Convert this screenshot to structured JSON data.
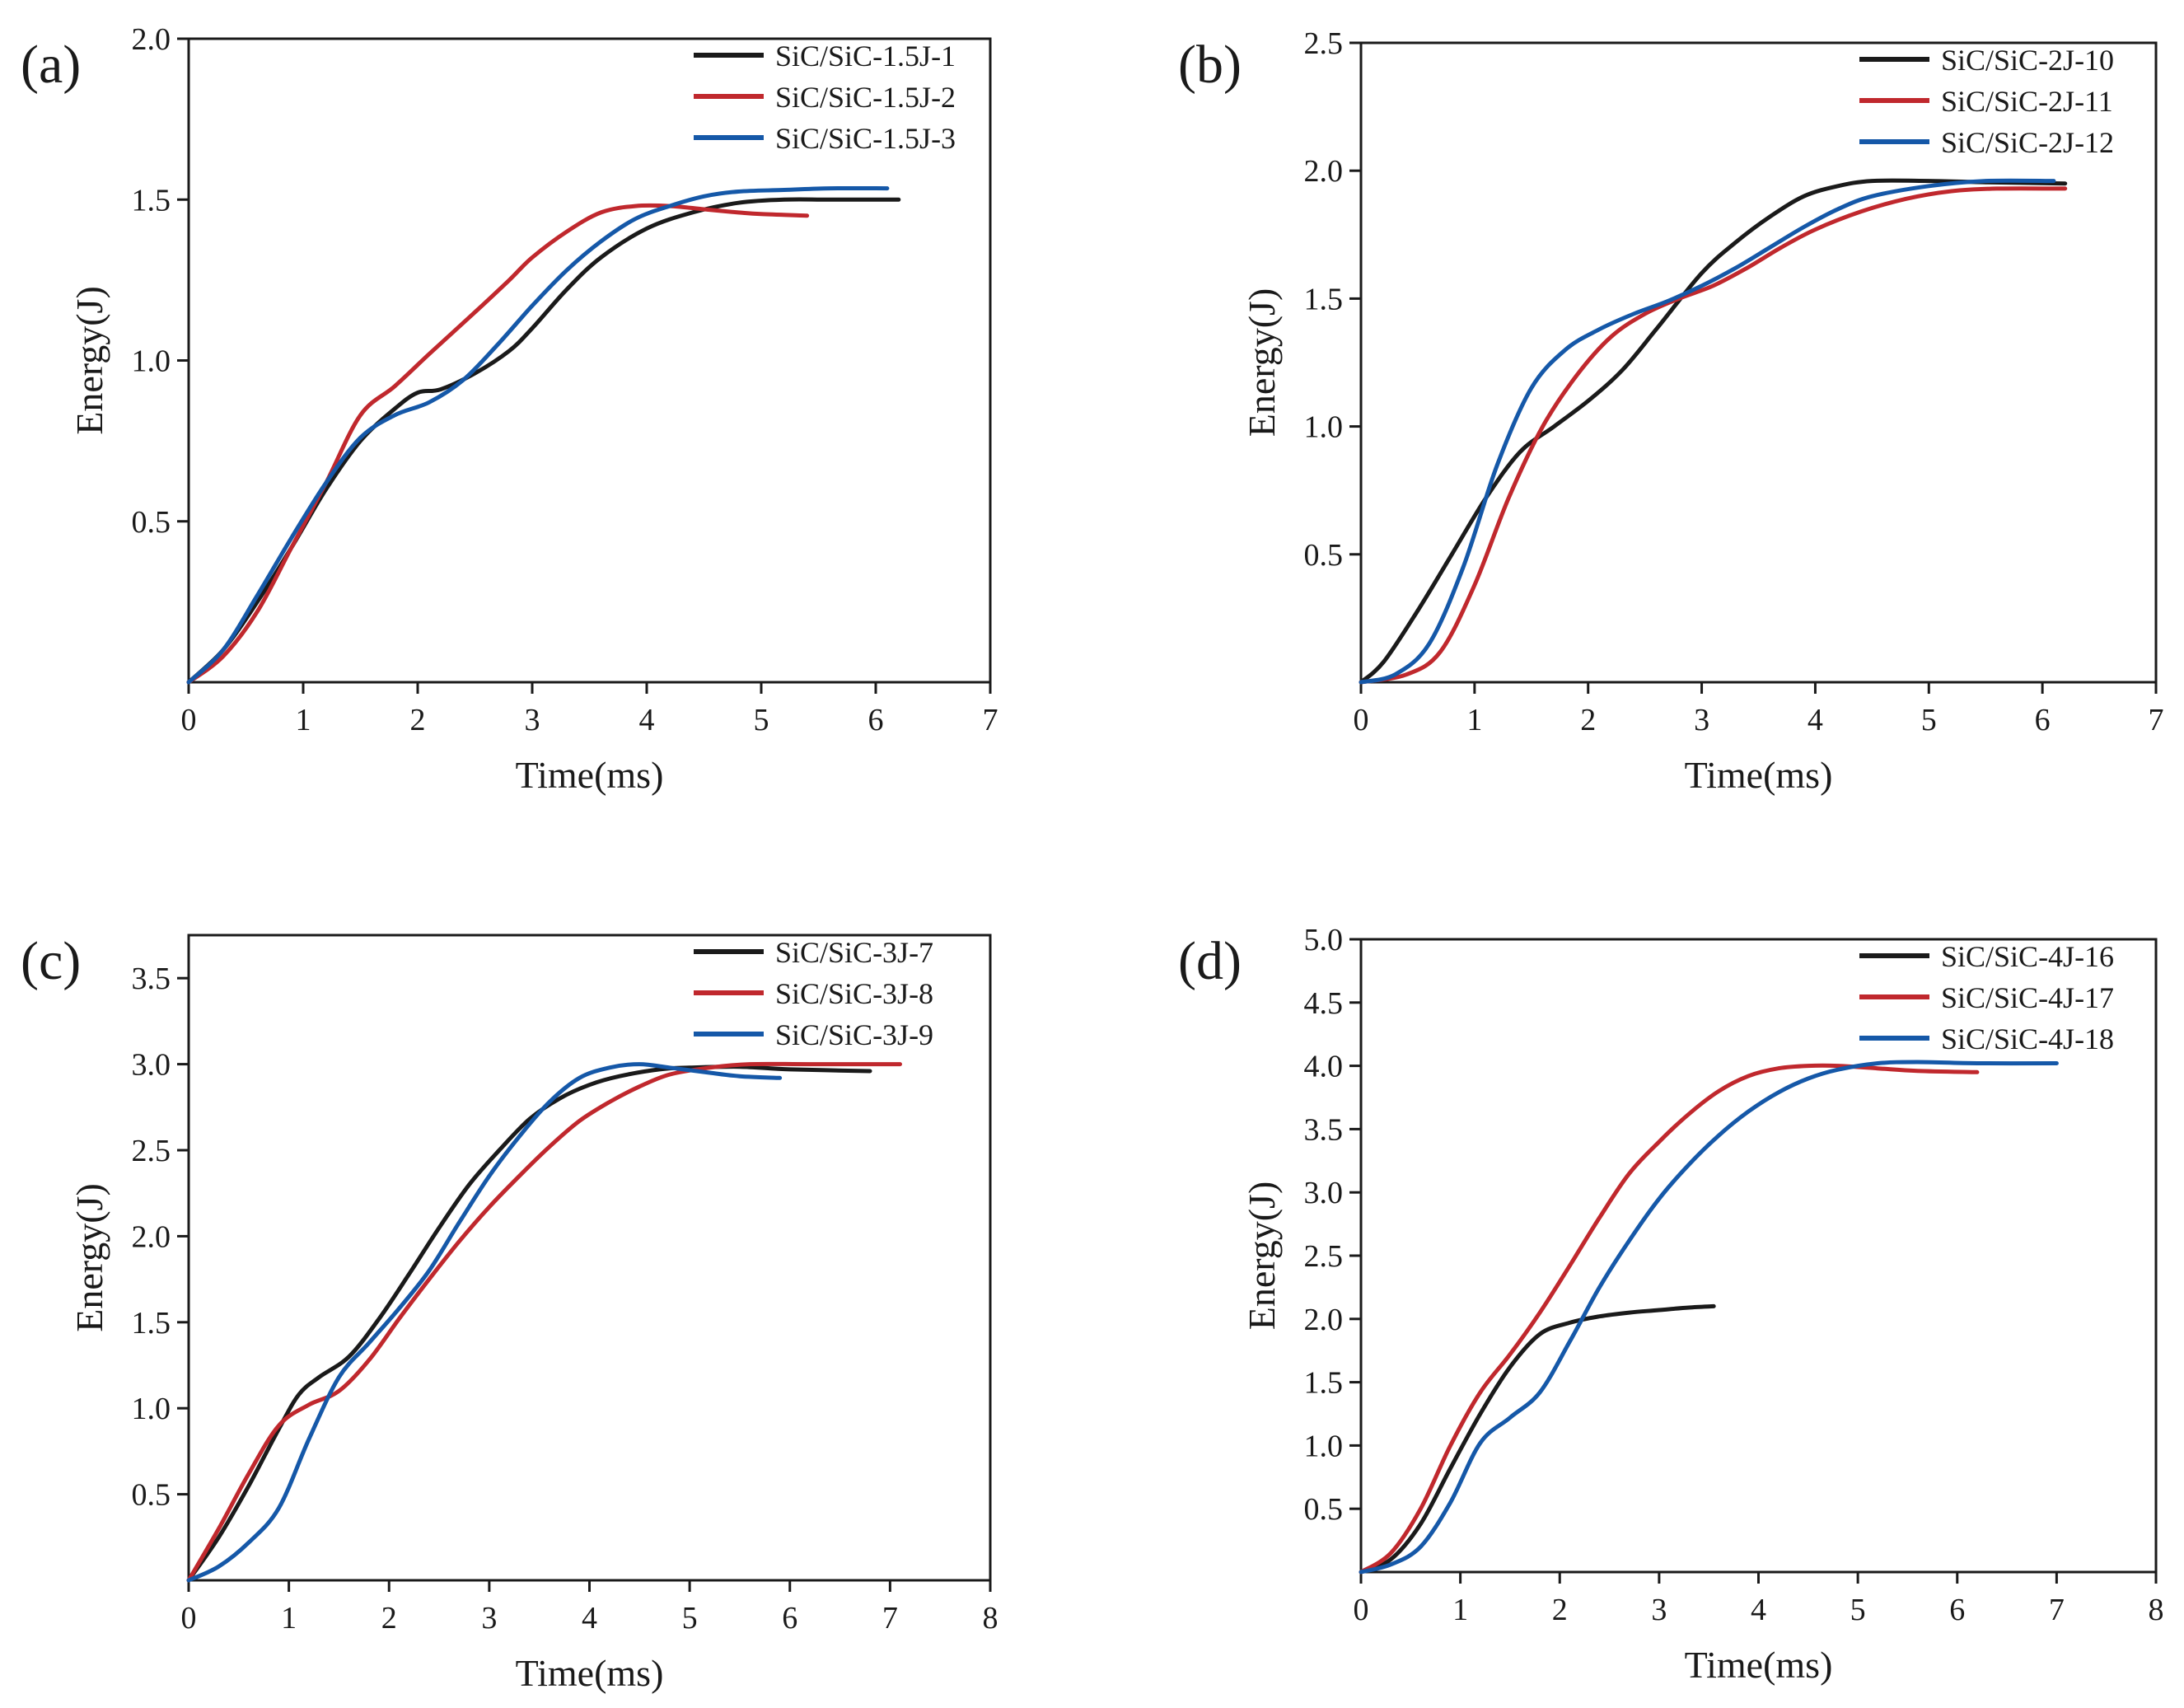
{
  "colors": {
    "black_series": "#1a1a1a",
    "red_series": "#c0282d",
    "blue_series": "#1558a8",
    "axis": "#1a1a1a"
  },
  "chart_data": [
    {
      "panel": "(a)",
      "type": "line",
      "xlabel": "Time(ms)",
      "ylabel": "Energy(J)",
      "xlim": [
        0,
        7
      ],
      "ylim": [
        0,
        2.0
      ],
      "xticks": [
        "0",
        "1",
        "2",
        "3",
        "4",
        "5",
        "6",
        "7"
      ],
      "yticks": [
        "0.5",
        "1.0",
        "1.5",
        "2.0"
      ],
      "legend_position": "top-right",
      "series": [
        {
          "name": "SiC/SiC-1.5J-1",
          "color": "black",
          "x": [
            0,
            0.3,
            0.6,
            0.9,
            1.2,
            1.5,
            1.8,
            2.0,
            2.2,
            2.5,
            2.8,
            3.0,
            3.3,
            3.6,
            4.0,
            4.4,
            4.8,
            5.2,
            5.6,
            6.2
          ],
          "y": [
            0,
            0.1,
            0.25,
            0.42,
            0.6,
            0.75,
            0.85,
            0.9,
            0.91,
            0.96,
            1.03,
            1.1,
            1.22,
            1.32,
            1.41,
            1.46,
            1.49,
            1.5,
            1.5,
            1.5
          ]
        },
        {
          "name": "SiC/SiC-1.5J-2",
          "color": "red",
          "x": [
            0,
            0.3,
            0.6,
            0.9,
            1.2,
            1.5,
            1.8,
            2.1,
            2.5,
            2.8,
            3.0,
            3.3,
            3.6,
            3.9,
            4.2,
            4.5,
            4.8,
            5.0,
            5.4
          ],
          "y": [
            0,
            0.08,
            0.22,
            0.42,
            0.62,
            0.83,
            0.92,
            1.02,
            1.15,
            1.25,
            1.32,
            1.4,
            1.46,
            1.48,
            1.48,
            1.47,
            1.46,
            1.455,
            1.45
          ]
        },
        {
          "name": "SiC/SiC-1.5J-3",
          "color": "blue",
          "x": [
            0,
            0.3,
            0.6,
            0.9,
            1.2,
            1.5,
            1.8,
            2.1,
            2.4,
            2.7,
            3.0,
            3.3,
            3.6,
            3.9,
            4.2,
            4.5,
            4.8,
            5.2,
            5.6,
            6.1
          ],
          "y": [
            0,
            0.1,
            0.27,
            0.45,
            0.62,
            0.76,
            0.83,
            0.87,
            0.94,
            1.05,
            1.17,
            1.28,
            1.37,
            1.44,
            1.48,
            1.51,
            1.525,
            1.53,
            1.535,
            1.535
          ]
        }
      ]
    },
    {
      "panel": "(b)",
      "type": "line",
      "xlabel": "Time(ms)",
      "ylabel": "Energy(J)",
      "xlim": [
        0,
        7
      ],
      "ylim": [
        0,
        2.5
      ],
      "xticks": [
        "0",
        "1",
        "2",
        "3",
        "4",
        "5",
        "6",
        "7"
      ],
      "yticks": [
        "0.5",
        "1.0",
        "1.5",
        "2.0",
        "2.5"
      ],
      "legend_position": "top-right",
      "series": [
        {
          "name": "SiC/SiC-2J-10",
          "color": "black",
          "x": [
            0,
            0.2,
            0.5,
            0.8,
            1.1,
            1.4,
            1.7,
            2.0,
            2.3,
            2.6,
            3.0,
            3.3,
            3.6,
            3.9,
            4.2,
            4.5,
            5.0,
            5.5,
            6.2
          ],
          "y": [
            0,
            0.08,
            0.28,
            0.5,
            0.72,
            0.9,
            1.0,
            1.1,
            1.22,
            1.38,
            1.6,
            1.72,
            1.82,
            1.9,
            1.94,
            1.96,
            1.96,
            1.955,
            1.95
          ]
        },
        {
          "name": "SiC/SiC-2J-11",
          "color": "red",
          "x": [
            0,
            0.4,
            0.7,
            1.0,
            1.3,
            1.6,
            1.9,
            2.2,
            2.5,
            2.8,
            3.1,
            3.4,
            3.7,
            4.0,
            4.4,
            4.8,
            5.2,
            5.6,
            6.2
          ],
          "y": [
            0,
            0.03,
            0.12,
            0.38,
            0.72,
            1.0,
            1.2,
            1.35,
            1.44,
            1.5,
            1.55,
            1.62,
            1.7,
            1.77,
            1.84,
            1.89,
            1.92,
            1.93,
            1.93
          ]
        },
        {
          "name": "SiC/SiC-2J-12",
          "color": "blue",
          "x": [
            0,
            0.3,
            0.6,
            0.9,
            1.2,
            1.5,
            1.8,
            2.1,
            2.4,
            2.7,
            3.0,
            3.3,
            3.6,
            3.9,
            4.2,
            4.5,
            5.0,
            5.5,
            6.1
          ],
          "y": [
            0,
            0.03,
            0.15,
            0.45,
            0.85,
            1.15,
            1.3,
            1.38,
            1.44,
            1.49,
            1.55,
            1.62,
            1.7,
            1.78,
            1.85,
            1.9,
            1.94,
            1.96,
            1.96
          ]
        }
      ]
    },
    {
      "panel": "(c)",
      "type": "line",
      "xlabel": "Time(ms)",
      "ylabel": "Energy(J)",
      "xlim": [
        0,
        8
      ],
      "ylim": [
        0,
        3.75
      ],
      "xticks": [
        "0",
        "1",
        "2",
        "3",
        "4",
        "5",
        "6",
        "7",
        "8"
      ],
      "yticks": [
        "0.5",
        "1.0",
        "1.5",
        "2.0",
        "2.5",
        "3.0",
        "3.5"
      ],
      "legend_position": "top-right",
      "series": [
        {
          "name": "SiC/SiC-3J-7",
          "color": "black",
          "x": [
            0,
            0.3,
            0.6,
            0.9,
            1.1,
            1.3,
            1.6,
            1.9,
            2.2,
            2.5,
            2.8,
            3.1,
            3.4,
            3.7,
            4.0,
            4.3,
            4.7,
            5.0,
            5.5,
            6.0,
            6.8
          ],
          "y": [
            0,
            0.25,
            0.55,
            0.88,
            1.08,
            1.18,
            1.3,
            1.52,
            1.78,
            2.05,
            2.3,
            2.5,
            2.68,
            2.8,
            2.88,
            2.93,
            2.97,
            2.98,
            2.985,
            2.97,
            2.96
          ]
        },
        {
          "name": "SiC/SiC-3J-8",
          "color": "red",
          "x": [
            0,
            0.3,
            0.6,
            0.9,
            1.2,
            1.5,
            1.8,
            2.1,
            2.4,
            2.7,
            3.0,
            3.3,
            3.6,
            3.9,
            4.2,
            4.5,
            4.8,
            5.2,
            5.6,
            6.2,
            7.1
          ],
          "y": [
            0,
            0.3,
            0.62,
            0.9,
            1.02,
            1.1,
            1.28,
            1.52,
            1.75,
            1.97,
            2.17,
            2.35,
            2.52,
            2.67,
            2.78,
            2.87,
            2.94,
            2.98,
            3.0,
            3.0,
            3.0
          ]
        },
        {
          "name": "SiC/SiC-3J-9",
          "color": "blue",
          "x": [
            0,
            0.3,
            0.6,
            0.9,
            1.2,
            1.5,
            1.8,
            2.1,
            2.4,
            2.7,
            3.0,
            3.3,
            3.6,
            3.9,
            4.2,
            4.5,
            4.8,
            5.2,
            5.5,
            5.9
          ],
          "y": [
            0,
            0.08,
            0.22,
            0.42,
            0.82,
            1.18,
            1.38,
            1.58,
            1.8,
            2.08,
            2.35,
            2.58,
            2.78,
            2.92,
            2.98,
            3.0,
            2.98,
            2.95,
            2.93,
            2.92
          ]
        }
      ]
    },
    {
      "panel": "(d)",
      "type": "line",
      "xlabel": "Time(ms)",
      "ylabel": "Energy(J)",
      "xlim": [
        0,
        8
      ],
      "ylim": [
        0,
        5.0
      ],
      "xticks": [
        "0",
        "1",
        "2",
        "3",
        "4",
        "5",
        "6",
        "7",
        "8"
      ],
      "yticks": [
        "0.5",
        "1.0",
        "1.5",
        "2.0",
        "2.5",
        "3.0",
        "3.5",
        "4.0",
        "4.5",
        "5.0"
      ],
      "legend_position": "top-right",
      "series": [
        {
          "name": "SiC/SiC-4J-16",
          "color": "black",
          "x": [
            0,
            0.3,
            0.6,
            0.9,
            1.2,
            1.5,
            1.8,
            2.1,
            2.4,
            2.7,
            3.0,
            3.3,
            3.55
          ],
          "y": [
            0,
            0.1,
            0.38,
            0.82,
            1.25,
            1.62,
            1.88,
            1.97,
            2.02,
            2.05,
            2.07,
            2.09,
            2.1
          ]
        },
        {
          "name": "SiC/SiC-4J-17",
          "color": "red",
          "x": [
            0,
            0.3,
            0.6,
            0.9,
            1.2,
            1.5,
            1.8,
            2.1,
            2.4,
            2.7,
            3.0,
            3.3,
            3.6,
            3.9,
            4.2,
            4.5,
            4.8,
            5.2,
            5.6,
            6.2
          ],
          "y": [
            0,
            0.15,
            0.5,
            1.0,
            1.42,
            1.72,
            2.05,
            2.42,
            2.8,
            3.15,
            3.4,
            3.62,
            3.8,
            3.92,
            3.98,
            4.0,
            4.0,
            3.98,
            3.96,
            3.95
          ]
        },
        {
          "name": "SiC/SiC-4J-18",
          "color": "blue",
          "x": [
            0,
            0.3,
            0.6,
            0.9,
            1.2,
            1.5,
            1.8,
            2.1,
            2.4,
            2.7,
            3.0,
            3.3,
            3.6,
            3.9,
            4.2,
            4.5,
            4.8,
            5.2,
            5.6,
            6.2,
            7.0
          ],
          "y": [
            0,
            0.06,
            0.2,
            0.55,
            1.02,
            1.22,
            1.42,
            1.82,
            2.25,
            2.62,
            2.95,
            3.22,
            3.45,
            3.64,
            3.79,
            3.9,
            3.97,
            4.02,
            4.03,
            4.02,
            4.02
          ]
        }
      ]
    }
  ]
}
